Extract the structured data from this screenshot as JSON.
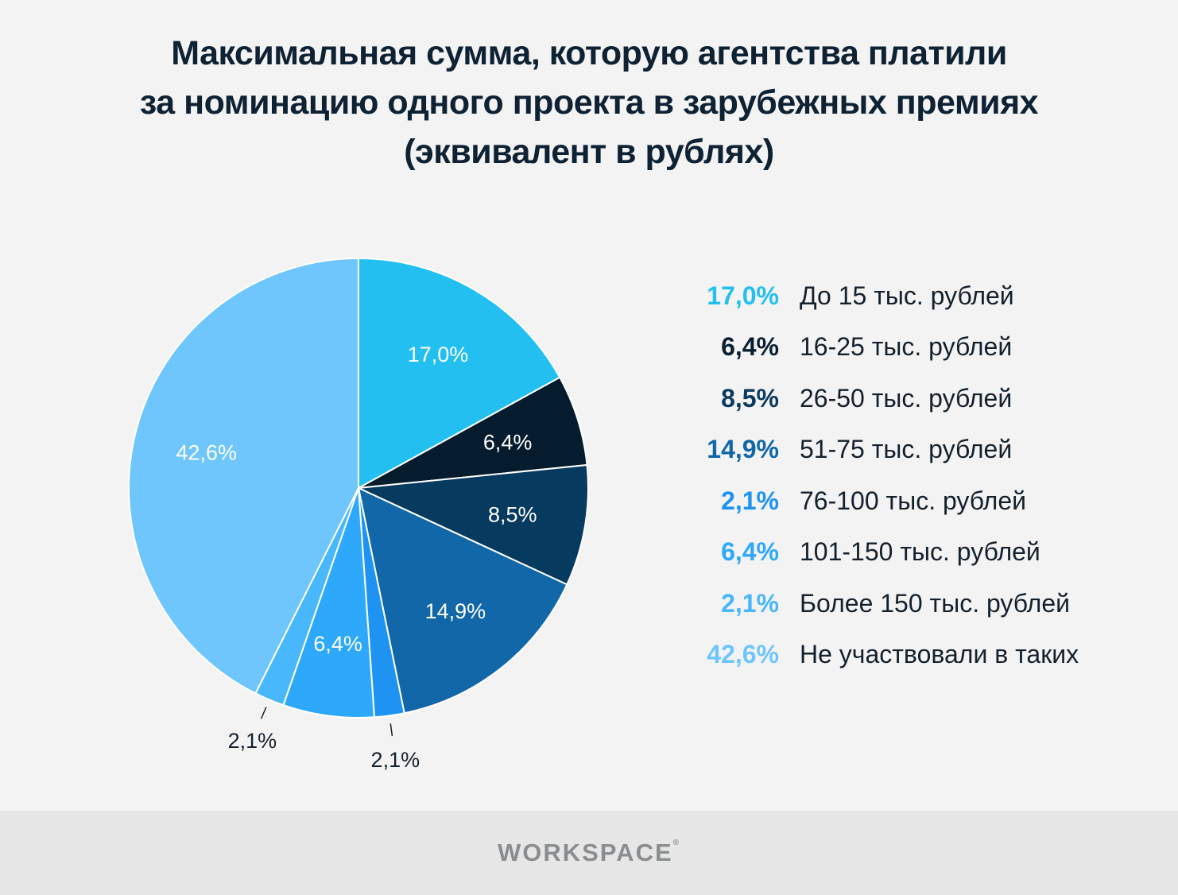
{
  "title_lines": [
    "Максимальная сумма, которую агентства платили",
    "за номинацию одного проекта в зарубежных премиях",
    "(эквивалент в рублях)"
  ],
  "chart_data": {
    "type": "pie",
    "title": "Максимальная сумма, которую агентства платили за номинацию одного проекта в зарубежных премиях (эквивалент в рублях)",
    "slices": [
      {
        "label": "До 15 тыс. рублей",
        "value": 17.0,
        "display": "17,0%",
        "color": "#22bff0",
        "legend_color": "#22bff0"
      },
      {
        "label": "16-25 тыс. рублей",
        "value": 6.4,
        "display": "6,4%",
        "color": "#041c2e",
        "legend_color": "#0b1f30"
      },
      {
        "label": "26-50 тыс. рублей",
        "value": 8.5,
        "display": "8,5%",
        "color": "#073a5f",
        "legend_color": "#0a3a5e"
      },
      {
        "label": "51-75 тыс. рублей",
        "value": 14.9,
        "display": "14,9%",
        "color": "#1167a7",
        "legend_color": "#1167a7"
      },
      {
        "label": "76-100 тыс. рублей",
        "value": 2.1,
        "display": "2,1%",
        "color": "#1e93f2",
        "legend_color": "#1e93f2"
      },
      {
        "label": "101-150 тыс. рублей",
        "value": 6.4,
        "display": "6,4%",
        "color": "#2ea8fb",
        "legend_color": "#2ea8fb"
      },
      {
        "label": "Более 150 тыс. рублей",
        "value": 2.1,
        "display": "2,1%",
        "color": "#49b7fc",
        "legend_color": "#49b7fc"
      },
      {
        "label": "Не участвовали в таких",
        "value": 42.6,
        "display": "42,6%",
        "color": "#6fc6fc",
        "legend_color": "#6fc6fc"
      }
    ],
    "legend_position": "right"
  },
  "footer": {
    "logo_text": "WORKSPACE",
    "logo_mark": "®"
  }
}
